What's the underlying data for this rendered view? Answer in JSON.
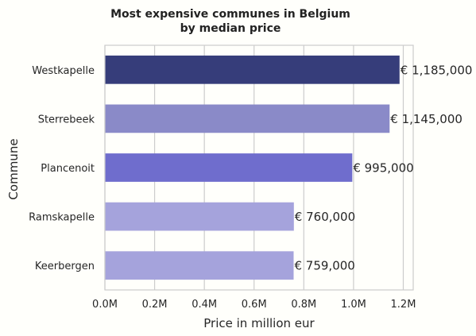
{
  "chart_data": {
    "type": "bar",
    "orientation": "horizontal",
    "title": [
      "Most expensive communes in Belgium",
      "by median price"
    ],
    "xlabel": "Price in million eur",
    "ylabel": "Commune",
    "xlim": [
      0,
      1.24
    ],
    "xticks": [
      0,
      0.2,
      0.4,
      0.6,
      0.8,
      1.0,
      1.2
    ],
    "xtick_labels": [
      "0.0M",
      "0.2M",
      "0.4M",
      "0.6M",
      "0.8M",
      "1.0M",
      "1.2M"
    ],
    "grid": "vertical",
    "categories": [
      "Westkapelle",
      "Sterrebeek",
      "Plancenoit",
      "Ramskapelle",
      "Keerbergen"
    ],
    "values": [
      1.185,
      1.145,
      0.995,
      0.76,
      0.759
    ],
    "value_labels": [
      "€ 1,185,000",
      "€ 1,145,000",
      "€ 995,000",
      "€ 760,000",
      "€ 759,000"
    ],
    "colors": [
      "#363d7a",
      "#8a8ac8",
      "#6f6dcd",
      "#a5a3dc",
      "#a5a3dc"
    ]
  }
}
